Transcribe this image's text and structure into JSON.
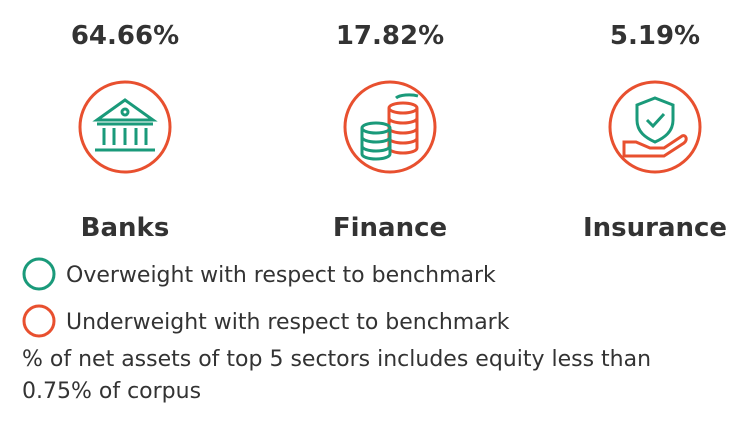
{
  "sectors": [
    {
      "share": "64.66%",
      "name": "Banks"
    },
    {
      "share": "17.82%",
      "name": "Finance"
    },
    {
      "share": "5.19%",
      "name": "Insurance"
    }
  ],
  "legend": [
    {
      "label": "Overweight with respect to benchmark",
      "color": "#1a9a7a"
    },
    {
      "label": "Underweight with respect to benchmark",
      "color": "#e8502f"
    }
  ],
  "footnote": [
    "% of net assets of top 5 sectors includes equity less than",
    "0.75% of corpus"
  ]
}
